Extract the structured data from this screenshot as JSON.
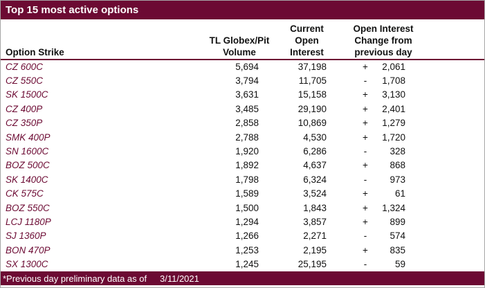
{
  "colors": {
    "maroon_accent": "#6c0a33",
    "border_gray": "#a6a6a6",
    "header_text": "#111111",
    "title_text": "#ffffff"
  },
  "title": "Top 15 most active options",
  "table": {
    "headers": {
      "col1": "Option Strike",
      "col2_lines": [
        "TL Globex/Pit",
        "Volume"
      ],
      "col3_lines": [
        "Current",
        "Open",
        "Interest"
      ],
      "col4_lines": [
        "Open Interest",
        "Change from",
        "previous day"
      ]
    },
    "rows": [
      {
        "strike": "CZ 600C",
        "volume": "5,694",
        "open_interest": "37,198",
        "change_sign": "+",
        "change_value": "2,061"
      },
      {
        "strike": "CZ 550C",
        "volume": "3,794",
        "open_interest": "11,705",
        "change_sign": "-",
        "change_value": "1,708"
      },
      {
        "strike": "SK 1500C",
        "volume": "3,631",
        "open_interest": "15,158",
        "change_sign": "+",
        "change_value": "3,130"
      },
      {
        "strike": "CZ 400P",
        "volume": "3,485",
        "open_interest": "29,190",
        "change_sign": "+",
        "change_value": "2,401"
      },
      {
        "strike": "CZ 350P",
        "volume": "2,858",
        "open_interest": "10,869",
        "change_sign": "+",
        "change_value": "1,279"
      },
      {
        "strike": "SMK 400P",
        "volume": "2,788",
        "open_interest": "4,530",
        "change_sign": "+",
        "change_value": "1,720"
      },
      {
        "strike": "SN 1600C",
        "volume": "1,920",
        "open_interest": "6,286",
        "change_sign": "-",
        "change_value": "328"
      },
      {
        "strike": "BOZ 500C",
        "volume": "1,892",
        "open_interest": "4,637",
        "change_sign": "+",
        "change_value": "868"
      },
      {
        "strike": "SK 1400C",
        "volume": "1,798",
        "open_interest": "6,324",
        "change_sign": "-",
        "change_value": "973"
      },
      {
        "strike": "CK 575C",
        "volume": "1,589",
        "open_interest": "3,524",
        "change_sign": "+",
        "change_value": "61"
      },
      {
        "strike": "BOZ 550C",
        "volume": "1,500",
        "open_interest": "1,843",
        "change_sign": "+",
        "change_value": "1,324"
      },
      {
        "strike": "LCJ 1180P",
        "volume": "1,294",
        "open_interest": "3,857",
        "change_sign": "+",
        "change_value": "899"
      },
      {
        "strike": "SJ 1360P",
        "volume": "1,266",
        "open_interest": "2,271",
        "change_sign": "-",
        "change_value": "574"
      },
      {
        "strike": "BON 470P",
        "volume": "1,253",
        "open_interest": "2,195",
        "change_sign": "+",
        "change_value": "835"
      },
      {
        "strike": "SX 1300C",
        "volume": "1,245",
        "open_interest": "25,195",
        "change_sign": "-",
        "change_value": "59"
      }
    ]
  },
  "footer": {
    "note": "*Previous day preliminary data as of",
    "date": "3/11/2021"
  }
}
